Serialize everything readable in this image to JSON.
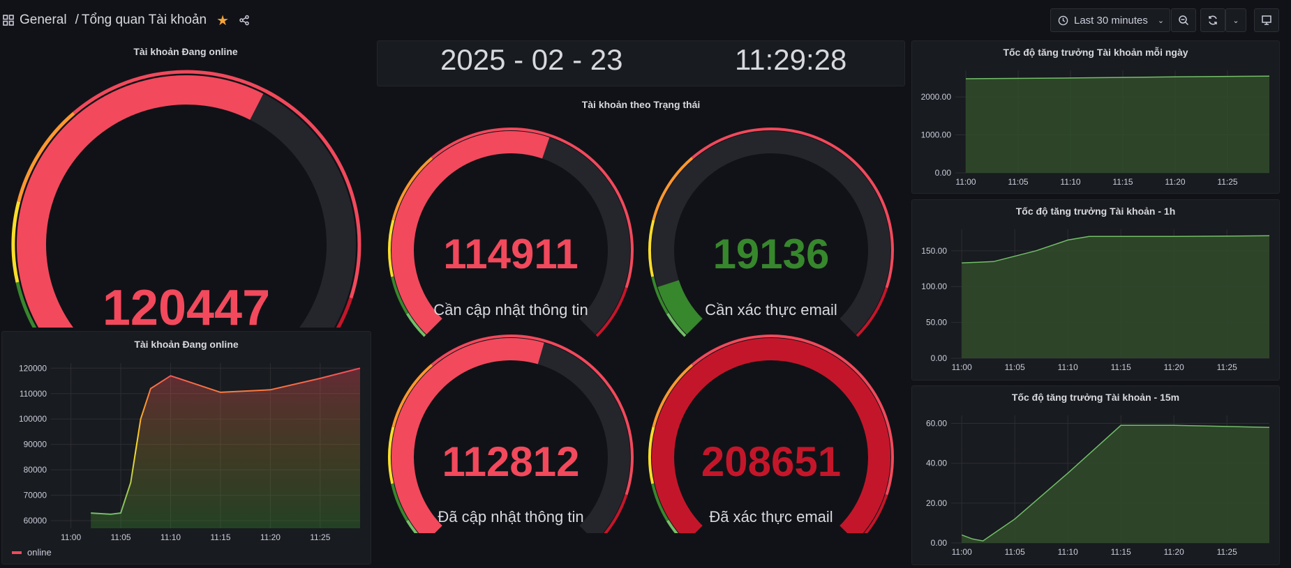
{
  "breadcrumb": {
    "folder": "General",
    "separator": "/",
    "title": "Tổng quan Tài khoản"
  },
  "toolbar": {
    "time_range": "Last 30 minutes"
  },
  "colors": {
    "red": "#f2495c",
    "dark_red": "#c4162a",
    "green": "#37872d",
    "track": "#25262c"
  },
  "date_panel": {
    "date": "2025 - 02 - 23",
    "time": "11:29:28"
  },
  "online_gauge": {
    "title": "Tài khoản Đang online",
    "value": "120447",
    "fraction": 0.6
  },
  "status_section": {
    "title": "Tài khoản theo Trạng thái"
  },
  "status_gauges": [
    {
      "value": "114911",
      "label": "Cần cập nhật thông tin",
      "fraction": 0.57,
      "color": "#f2495c"
    },
    {
      "value": "19136",
      "label": "Cần xác thực email",
      "fraction": 0.1,
      "color": "#37872d"
    },
    {
      "value": "112812",
      "label": "Đã cập nhật thông tin",
      "fraction": 0.56,
      "color": "#f2495c"
    },
    {
      "value": "208651",
      "label": "Đã xác thực email",
      "fraction": 1.0,
      "color": "#c4162a"
    }
  ],
  "online_chart": {
    "title": "Tài khoản Đang online",
    "legend": "online",
    "y_ticks": [
      "120000",
      "110000",
      "100000",
      "90000",
      "80000",
      "70000",
      "60000"
    ],
    "x_ticks": [
      "11:00",
      "11:05",
      "11:10",
      "11:15",
      "11:20",
      "11:25"
    ]
  },
  "daily_chart": {
    "title": "Tốc độ tăng trưởng Tài khoản mỗi ngày",
    "y_ticks": [
      "2000.00",
      "1000.00",
      "0.00"
    ],
    "x_ticks": [
      "11:00",
      "11:05",
      "11:10",
      "11:15",
      "11:20",
      "11:25"
    ]
  },
  "hourly_chart": {
    "title": "Tốc độ tăng trưởng Tài khoản - 1h",
    "y_ticks": [
      "150.00",
      "100.00",
      "50.00",
      "0.00"
    ],
    "x_ticks": [
      "11:00",
      "11:05",
      "11:10",
      "11:15",
      "11:20",
      "11:25"
    ]
  },
  "quarter_chart": {
    "title": "Tốc độ tăng trưởng Tài khoản - 15m",
    "y_ticks": [
      "60.00",
      "40.00",
      "20.00",
      "0.00"
    ],
    "x_ticks": [
      "11:00",
      "11:05",
      "11:10",
      "11:15",
      "11:20",
      "11:25"
    ]
  },
  "chart_data": [
    {
      "type": "area",
      "title": "Tài khoản Đang online",
      "series": [
        {
          "name": "online",
          "x": [
            "11:02",
            "11:04",
            "11:05",
            "11:06",
            "11:07",
            "11:08",
            "11:10",
            "11:15",
            "11:20",
            "11:25",
            "11:29"
          ],
          "values": [
            63000,
            62500,
            63000,
            75000,
            100000,
            112000,
            117000,
            110500,
            111500,
            116000,
            120000
          ]
        }
      ],
      "ylim": [
        57000,
        122000
      ]
    },
    {
      "type": "area",
      "title": "Tốc độ tăng trưởng Tài khoản mỗi ngày",
      "series": [
        {
          "x": [
            "11:00",
            "11:10",
            "11:20",
            "11:29"
          ],
          "values": [
            2480,
            2500,
            2530,
            2550
          ]
        }
      ],
      "ylim": [
        0,
        2700
      ]
    },
    {
      "type": "area",
      "title": "Tốc độ tăng trưởng Tài khoản - 1h",
      "series": [
        {
          "x": [
            "11:00",
            "11:03",
            "11:07",
            "11:10",
            "11:12",
            "11:20",
            "11:29"
          ],
          "values": [
            133,
            135,
            150,
            165,
            170,
            170,
            171
          ]
        }
      ],
      "ylim": [
        0,
        180
      ]
    },
    {
      "type": "area",
      "title": "Tốc độ tăng trưởng Tài khoản - 15m",
      "series": [
        {
          "x": [
            "11:00",
            "11:01",
            "11:02",
            "11:05",
            "11:10",
            "11:15",
            "11:20",
            "11:29"
          ],
          "values": [
            4,
            2,
            1,
            12,
            35,
            59,
            59,
            58
          ]
        }
      ],
      "ylim": [
        0,
        64
      ]
    }
  ]
}
